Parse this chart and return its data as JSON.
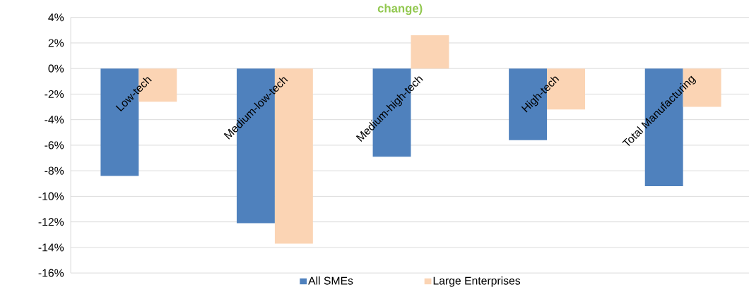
{
  "chart_data": {
    "type": "bar",
    "title": "change)",
    "categories": [
      "Low-tech",
      "Medium-low-tech",
      "Medium-high-tech",
      "High-tech",
      "Total Manufacturing"
    ],
    "series": [
      {
        "name": "All SMEs",
        "color": "#4f81bd",
        "values": [
          -8.4,
          -12.1,
          -6.9,
          -5.6,
          -9.2
        ]
      },
      {
        "name": "Large Enterprises",
        "color": "#fbd4b4",
        "values": [
          -2.6,
          -13.7,
          2.6,
          -3.2,
          -3.0
        ]
      }
    ],
    "ylim": [
      -16,
      4
    ],
    "yticks": [
      {
        "value": 4,
        "label": "4%"
      },
      {
        "value": 2,
        "label": "2%"
      },
      {
        "value": 0,
        "label": "0%"
      },
      {
        "value": -2,
        "label": "-2%"
      },
      {
        "value": -4,
        "label": "-4%"
      },
      {
        "value": -6,
        "label": "-6%"
      },
      {
        "value": -8,
        "label": "-8%"
      },
      {
        "value": -10,
        "label": "-10%"
      },
      {
        "value": -12,
        "label": "-12%"
      },
      {
        "value": -14,
        "label": "-14%"
      },
      {
        "value": -16,
        "label": "-16%"
      }
    ],
    "grid": "y",
    "legend": "bottom"
  }
}
